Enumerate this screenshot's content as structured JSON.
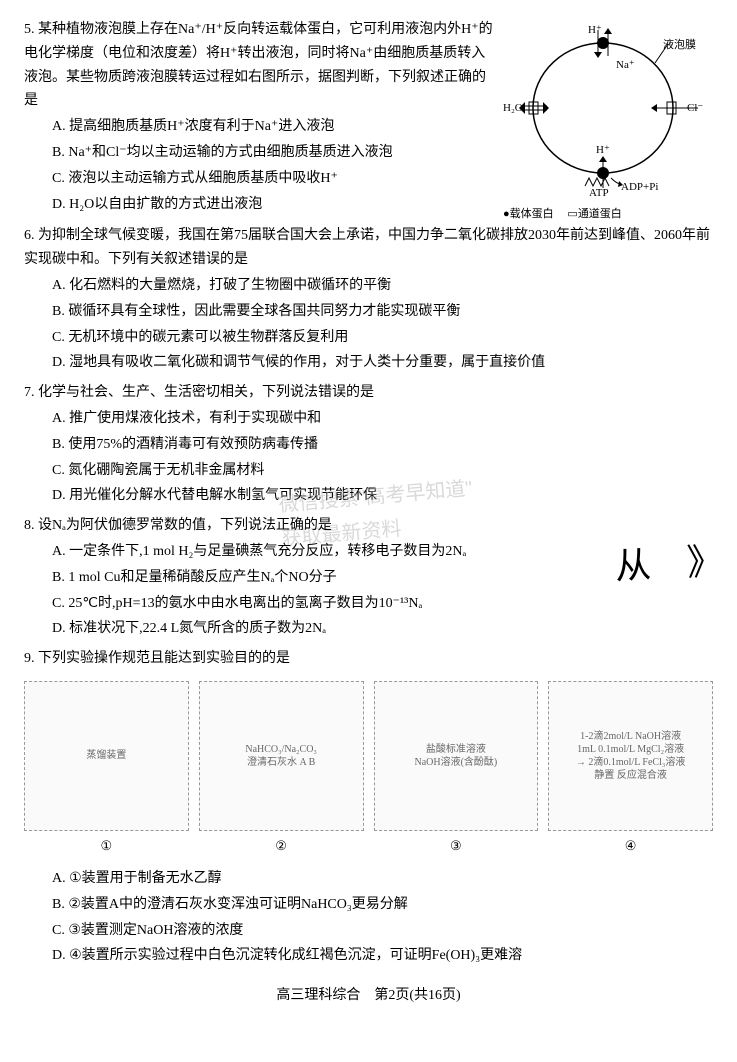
{
  "q5": {
    "num": "5.",
    "stem": "某种植物液泡膜上存在Na⁺/H⁺反向转运载体蛋白，它可利用液泡内外H⁺的电化学梯度（电位和浓度差）将H⁺转出液泡，同时将Na⁺由细胞质基质转入液泡。某些物质跨液泡膜转运过程如右图所示，据图判断，下列叙述正确的是",
    "opts": {
      "A": "A. 提高细胞质基质H⁺浓度有利于Na⁺进入液泡",
      "B": "B. Na⁺和Cl⁻均以主动运输的方式由细胞质基质进入液泡",
      "C": "C. 液泡以主动运输方式从细胞质基质中吸收H⁺",
      "D": "D. H₂O以自由扩散的方式进出液泡"
    },
    "diagram": {
      "labels": {
        "mem": "液泡膜",
        "h2o": "H₂O",
        "na": "Na⁺",
        "hplus": "H⁺",
        "cl": "Cl⁻",
        "atp": "ATP",
        "adp": "ADP+Pi",
        "carrier": "载体蛋白",
        "channel": "通道蛋白"
      },
      "legend_symbols": {
        "carrier_sym": "●",
        "channel_sym": "▭"
      },
      "colors": {
        "line": "#000",
        "bg": "#fff"
      }
    }
  },
  "q6": {
    "num": "6.",
    "stem": "为抑制全球气候变暖，我国在第75届联合国大会上承诺，中国力争二氧化碳排放2030年前达到峰值、2060年前实现碳中和。下列有关叙述错误的是",
    "opts": {
      "A": "A. 化石燃料的大量燃烧，打破了生物圈中碳循环的平衡",
      "B": "B. 碳循环具有全球性，因此需要全球各国共同努力才能实现碳平衡",
      "C": "C. 无机环境中的碳元素可以被生物群落反复利用",
      "D": "D. 湿地具有吸收二氧化碳和调节气候的作用，对于人类十分重要，属于直接价值"
    }
  },
  "q7": {
    "num": "7.",
    "stem": "化学与社会、生产、生活密切相关，下列说法错误的是",
    "opts": {
      "A": "A. 推广使用煤液化技术，有利于实现碳中和",
      "B": "B. 使用75%的酒精消毒可有效预防病毒传播",
      "C": "C. 氮化硼陶瓷属于无机非金属材料",
      "D": "D. 用光催化分解水代替电解水制氢气可实现节能环保"
    }
  },
  "q8": {
    "num": "8.",
    "stem": "设Nₐ为阿伏伽德罗常数的值，下列说法正确的是",
    "opts": {
      "A": "A. 一定条件下,1 mol H₂与足量碘蒸气充分反应，转移电子数目为2Nₐ",
      "B": "B. 1 mol Cu和足量稀硝酸反应产生Nₐ个NO分子",
      "C": "C. 25℃时,pH=13的氨水中由水电离出的氢离子数目为10⁻¹³Nₐ",
      "D": "D. 标准状况下,22.4 L氮气所含的质子数为2Nₐ"
    }
  },
  "q9": {
    "num": "9.",
    "stem": "下列实验操作规范且能达到实验目的的是",
    "experiments": [
      {
        "num": "①",
        "desc": "蒸馏装置",
        "caption": ""
      },
      {
        "num": "②",
        "desc": "NaHCO₃/Na₂CO₃\n澄清石灰水 A B",
        "caption": ""
      },
      {
        "num": "③",
        "desc": "盐酸标准溶液\nNaOH溶液(含酚酞)",
        "caption": ""
      },
      {
        "num": "④",
        "desc": "1-2滴2mol/L NaOH溶液\n1mL 0.1mol/L MgCl₂溶液\n→ 2滴0.1mol/L FeCl₃溶液\n静置 反应混合液",
        "caption": ""
      }
    ],
    "opts": {
      "A": "A. ①装置用于制备无水乙醇",
      "B": "B. ②装置A中的澄清石灰水变浑浊可证明NaHCO₃更易分解",
      "C": "C. ③装置测定NaOH溶液的浓度",
      "D": "D. ④装置所示实验过程中白色沉淀转化成红褐色沉淀，可证明Fe(OH)₃更难溶"
    }
  },
  "footer": "高三理科综合　第2页(共16页)",
  "watermark": "微信搜索\"高考早知道\"\n获取最新资料",
  "handwrite": "从　》"
}
